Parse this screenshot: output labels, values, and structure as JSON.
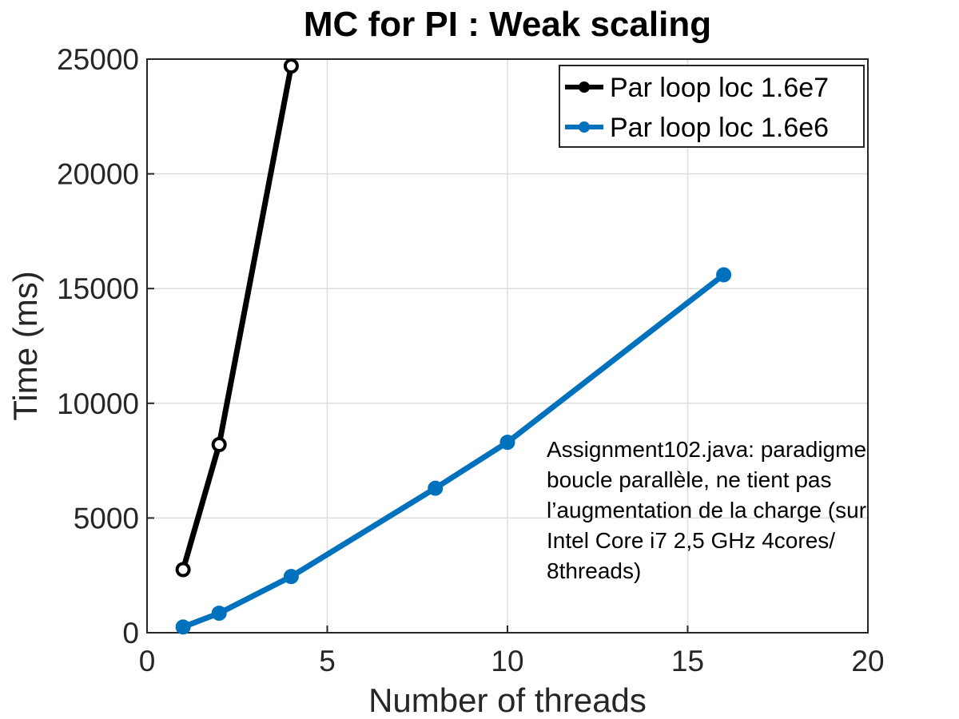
{
  "chart_data": {
    "type": "line",
    "title": "MC for PI : Weak scaling",
    "xlabel": "Number of threads",
    "ylabel": "Time (ms)",
    "xlim": [
      0,
      20
    ],
    "ylim": [
      0,
      25000
    ],
    "xticks": [
      0,
      5,
      10,
      15,
      20
    ],
    "yticks": [
      0,
      5000,
      10000,
      15000,
      20000,
      25000
    ],
    "grid": true,
    "legend_position": "top-right",
    "series": [
      {
        "name": "Par loop loc 1.6e7",
        "color": "#000000",
        "marker": "circle",
        "x": [
          1,
          2,
          4
        ],
        "y": [
          2750,
          8200,
          24700
        ]
      },
      {
        "name": "Par loop loc 1.6e6",
        "color": "#0072BD",
        "marker": "circle",
        "x": [
          1,
          2,
          4,
          8,
          10,
          16
        ],
        "y": [
          250,
          850,
          2450,
          6300,
          8300,
          15600
        ]
      }
    ],
    "annotation": {
      "lines": [
        "Assignment102.java: paradigme",
        "boucle parallèle, ne tient pas",
        "l’augmentation de la charge (sur",
        "Intel Core i7 2,5 GHz 4cores/",
        "8threads)"
      ]
    }
  }
}
